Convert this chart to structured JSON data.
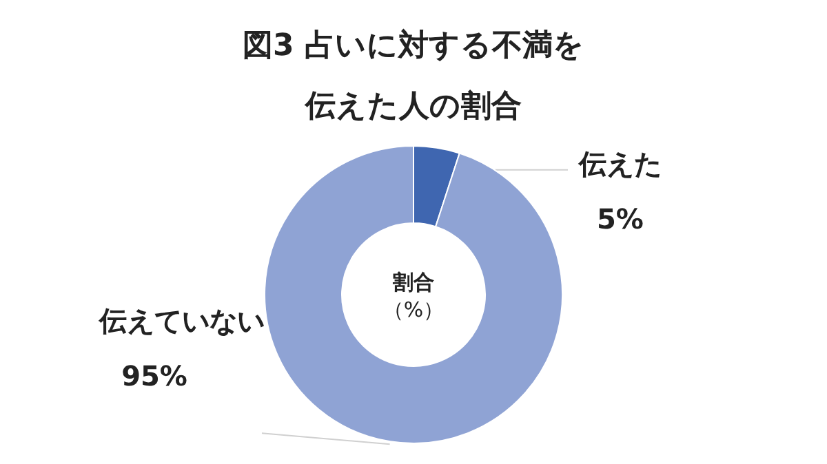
{
  "chart_data": {
    "type": "donut",
    "title": "図3 占いに対する不満を伝えた人の割合",
    "categories": [
      "伝えた",
      "伝えていない"
    ],
    "values": [
      5,
      95
    ],
    "value_labels": [
      "5%",
      "95%"
    ],
    "colors": [
      "#3f66b0",
      "#8fa3d4"
    ],
    "annotations": [
      "割合（%）"
    ]
  }
}
